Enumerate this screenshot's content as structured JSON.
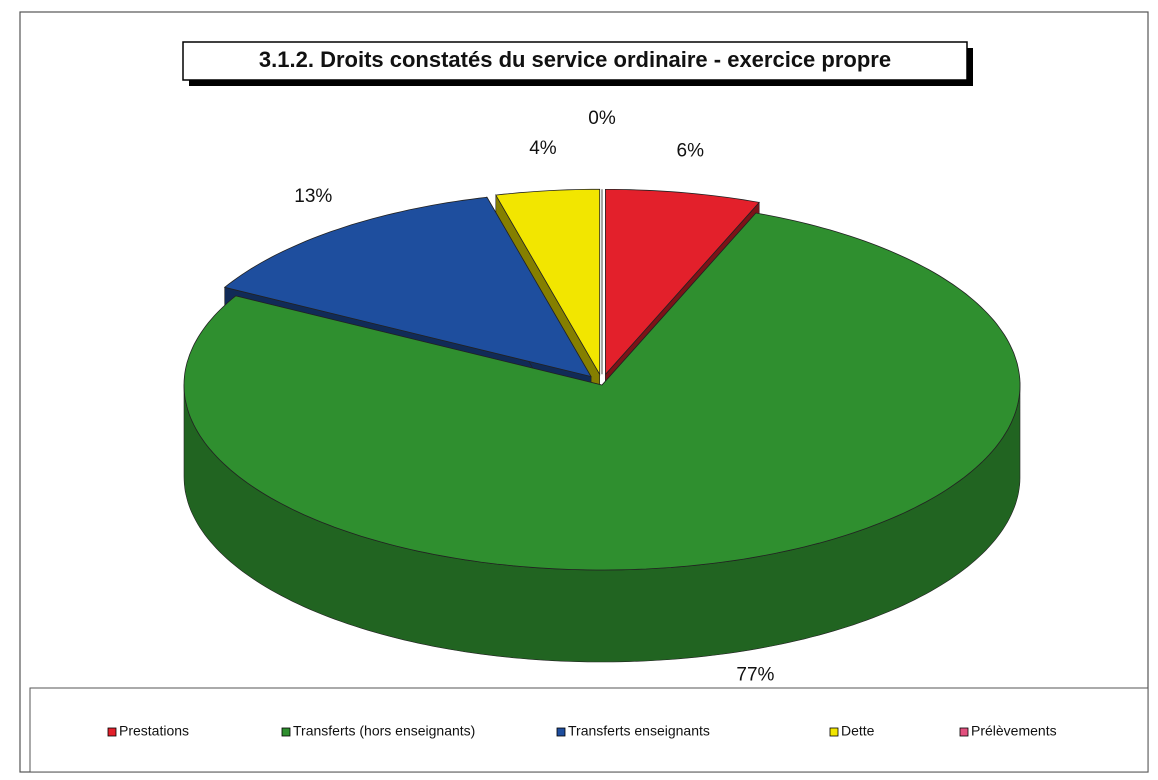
{
  "chart_data": {
    "type": "pie",
    "title": "3.1.2. Droits constatés du service ordinaire - exercice propre",
    "categories": [
      "Prestations",
      "Transferts (hors enseignants)",
      "Transferts enseignants",
      "Dette",
      "Prélèvements"
    ],
    "values": [
      6,
      77,
      13,
      4,
      0
    ],
    "value_labels": [
      "6%",
      "77%",
      "13%",
      "4%",
      "0%"
    ],
    "colors": [
      "#e3202b",
      "#2f8f2f",
      "#1e4e9e",
      "#f2e600",
      "#e2507e"
    ],
    "legend": "bottom"
  }
}
